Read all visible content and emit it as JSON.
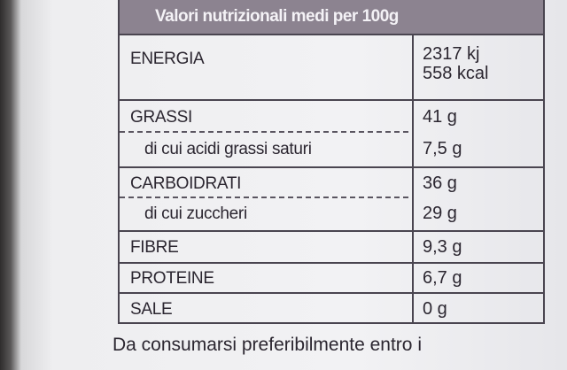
{
  "header": {
    "title": "Valori nutrizionali medi per 100g"
  },
  "table": {
    "rows": [
      [
        "ENERGIA",
        [
          "2317 kj",
          "558 kcal"
        ]
      ],
      [
        "GRASSI",
        "41 g"
      ],
      [
        "di cui acidi grassi saturi",
        "7,5 g"
      ],
      [
        "CARBOIDRATI",
        "36 g"
      ],
      [
        "di cui zuccheri",
        "29 g"
      ],
      [
        "FIBRE",
        "9,3 g"
      ],
      [
        "PROTEINE",
        "6,7 g"
      ],
      [
        "SALE",
        "0 g"
      ]
    ]
  },
  "footer": "Da consumarsi preferibilmente entro i"
}
